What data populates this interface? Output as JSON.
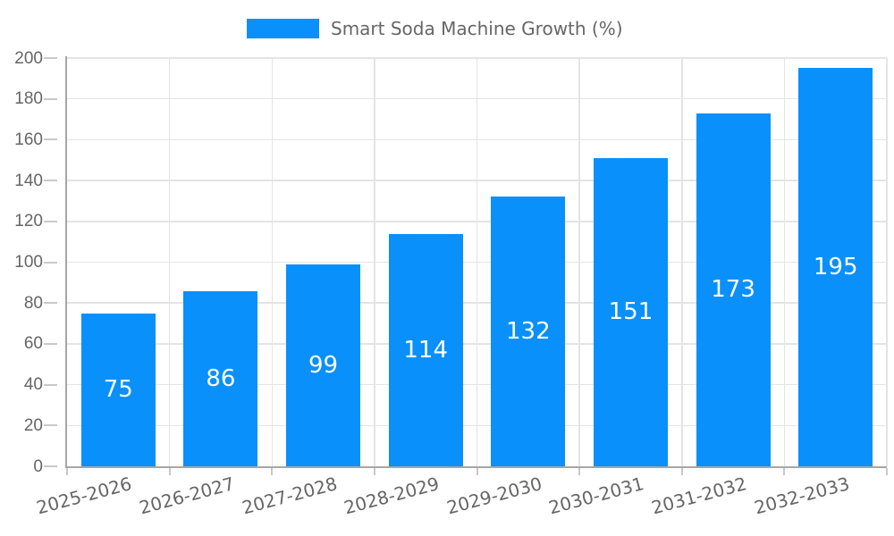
{
  "chart_data": {
    "type": "bar",
    "series_name": "Smart Soda Machine Growth (%)",
    "title": "Smart Soda Machine Growth (%)",
    "categories": [
      "2025-2026",
      "2026-2027",
      "2027-2028",
      "2028-2029",
      "2029-2030",
      "2030-2031",
      "2031-2032",
      "2032-2033"
    ],
    "values": [
      75,
      86,
      99,
      114,
      132,
      151,
      173,
      195
    ],
    "xlabel": "",
    "ylabel": "",
    "ylim": [
      0,
      200
    ],
    "ytick_step": 20,
    "ytick_labels": [
      "0",
      "20",
      "40",
      "60",
      "80",
      "100",
      "120",
      "140",
      "160",
      "180",
      "200"
    ],
    "grid": true,
    "legend_position": "top",
    "bar_color": "#0a90fa",
    "bar_label_color": "#ffffff",
    "axis_text_color": "#666666",
    "grid_color": "#e4e4e4",
    "axis_line_color": "#a6a6a6",
    "tick_color": "#c9c9c9"
  }
}
